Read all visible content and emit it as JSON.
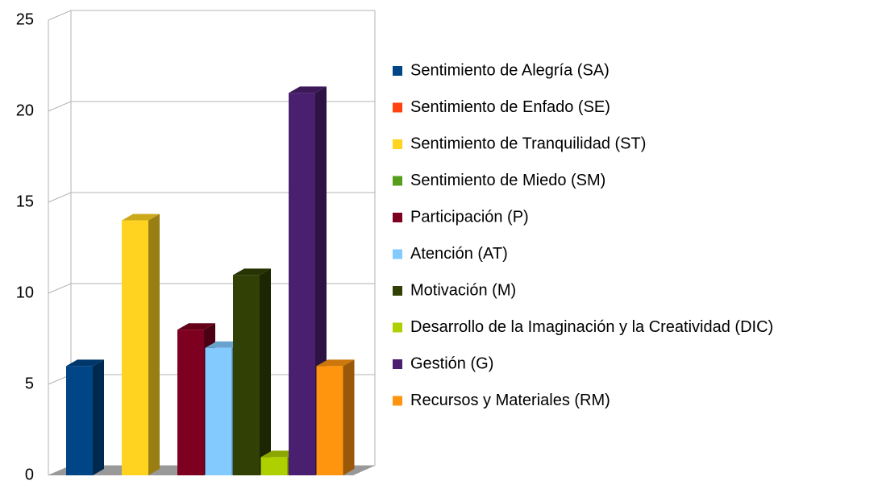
{
  "chart_data": {
    "type": "bar3d",
    "categories": [
      ""
    ],
    "series": [
      {
        "name": "Sentimiento de Alegría (SA)",
        "color": "#004586",
        "values": [
          6
        ]
      },
      {
        "name": "Sentimiento de Enfado (SE)",
        "color": "#ff420e",
        "values": [
          0
        ]
      },
      {
        "name": "Sentimiento de Tranquilidad (ST)",
        "color": "#ffd320",
        "values": [
          14
        ]
      },
      {
        "name": "Sentimiento de Miedo (SM)",
        "color": "#579d1c",
        "values": [
          0
        ]
      },
      {
        "name": "Participación (P)",
        "color": "#7e0021",
        "values": [
          8
        ]
      },
      {
        "name": "Atención (AT)",
        "color": "#83caff",
        "values": [
          7
        ]
      },
      {
        "name": "Motivación (M)",
        "color": "#314004",
        "values": [
          11
        ]
      },
      {
        "name": "Desarrollo de la Imaginación y la Creatividad (DIC)",
        "color": "#aecf00",
        "values": [
          1
        ]
      },
      {
        "name": "Gestión (G)",
        "color": "#4b1f6f",
        "values": [
          21
        ]
      },
      {
        "name": "Recursos y Materiales (RM)",
        "color": "#ff950e",
        "values": [
          6
        ]
      }
    ],
    "ylim": [
      0,
      25
    ],
    "yticks": [
      0,
      5,
      10,
      15,
      20,
      25
    ],
    "grid": true,
    "legend": "right"
  }
}
